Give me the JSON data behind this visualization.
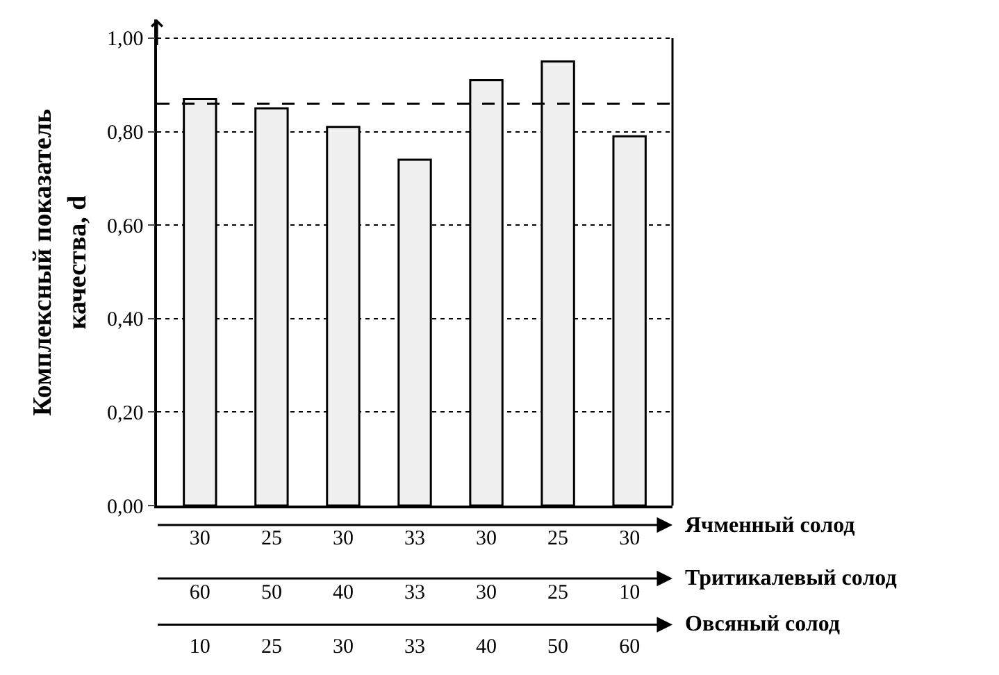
{
  "chart_data": {
    "type": "bar",
    "ylabel": "Комплексный показатель\nкачества, d",
    "categories": [
      "30\n60\n10",
      "25\n50\n25",
      "30\n40\n30",
      "33\n33\n33",
      "30\n30\n40",
      "25\n25\n50",
      "30\n10\n60"
    ],
    "values": [
      0.87,
      0.85,
      0.81,
      0.74,
      0.91,
      0.95,
      0.79
    ],
    "color": "#f0f0f0",
    "ylim": [
      0,
      1.04
    ],
    "yticks": [
      {
        "value": 0,
        "label": "0,00"
      },
      {
        "value": 0.2,
        "label": "0,20"
      },
      {
        "value": 0.4,
        "label": "0,40"
      },
      {
        "value": 0.6,
        "label": "0,60"
      },
      {
        "value": 0.8,
        "label": "0,80"
      },
      {
        "value": 1.0,
        "label": "1,00"
      }
    ],
    "grid": "y",
    "ref_lines": [
      {
        "axis": "y",
        "value": 0.86,
        "line_style": "dashed",
        "color": "#000000"
      }
    ],
    "annotations": [
      "Ячменный солод",
      "Тритикалевый солод",
      "Овсяный солод"
    ]
  }
}
